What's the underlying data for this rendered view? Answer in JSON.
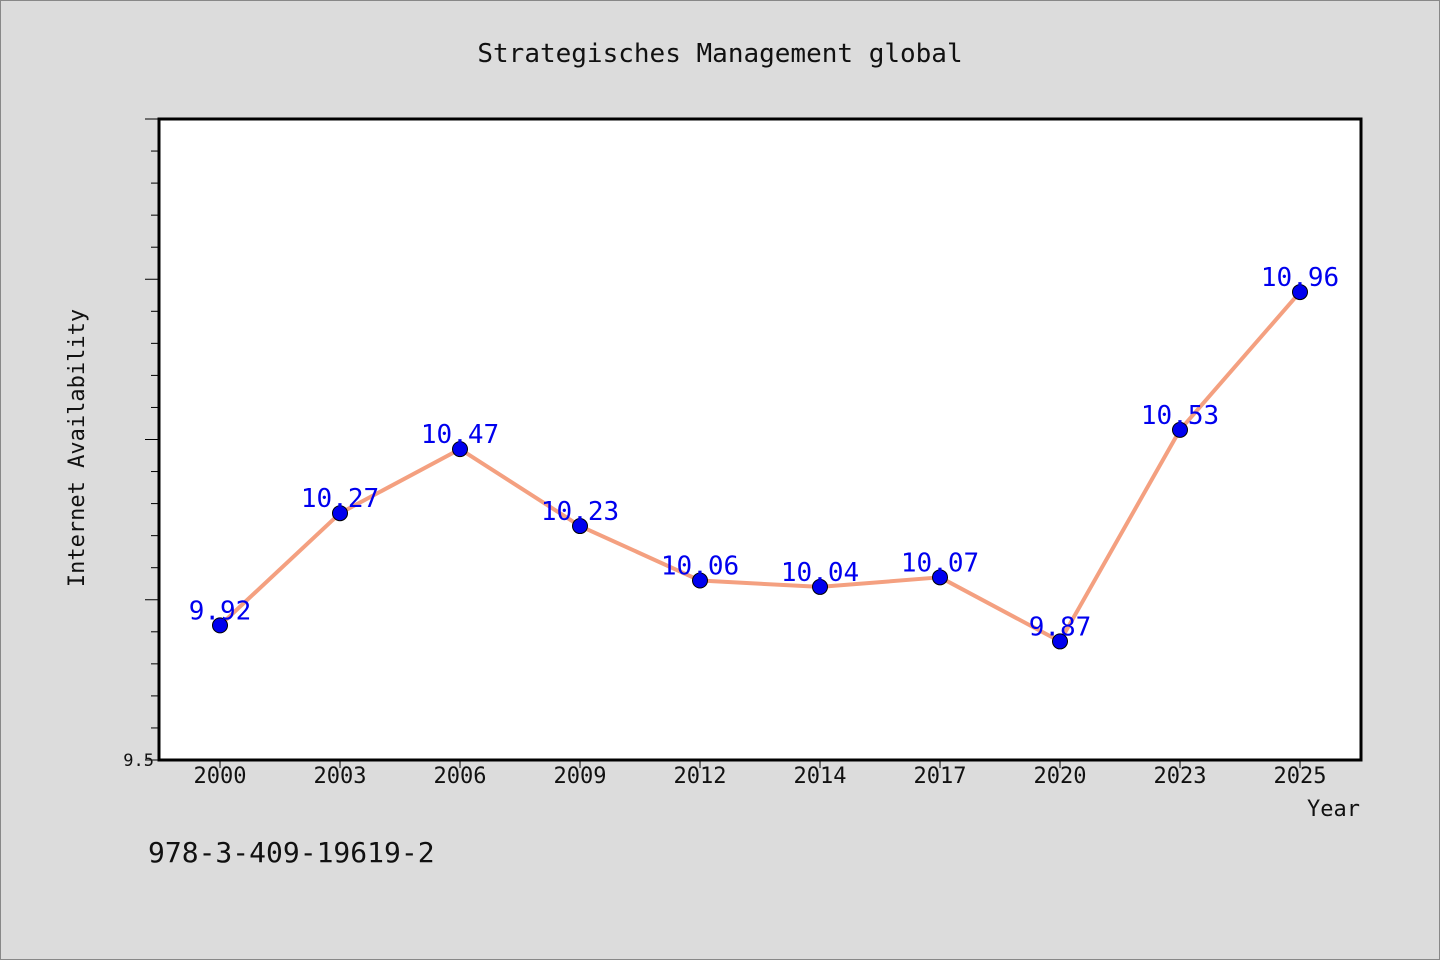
{
  "chart_data": {
    "type": "line",
    "title": "Strategisches Management global",
    "xlabel": "Year",
    "ylabel": "Internet Availability",
    "categories": [
      "2000",
      "2003",
      "2006",
      "2009",
      "2012",
      "2014",
      "2017",
      "2020",
      "2023",
      "2025"
    ],
    "series": [
      {
        "values": [
          9.92,
          10.27,
          10.47,
          10.23,
          10.06,
          10.04,
          10.07,
          9.87,
          10.53,
          10.96
        ],
        "data_labels": [
          "9.92",
          "10.27",
          "10.47",
          "10.23",
          "10.06",
          "10.04",
          "10.07",
          "9.87",
          "10.53",
          "10.96"
        ],
        "line_color": "#f4a080",
        "marker_color": "#0000ee",
        "label_color": "#0000ee"
      }
    ],
    "ylim": [
      9.5,
      11.5
    ],
    "yticks_labeled": [
      "9.5"
    ],
    "grid": false,
    "legend": "none",
    "footnote": "978-3-409-19619-2"
  }
}
